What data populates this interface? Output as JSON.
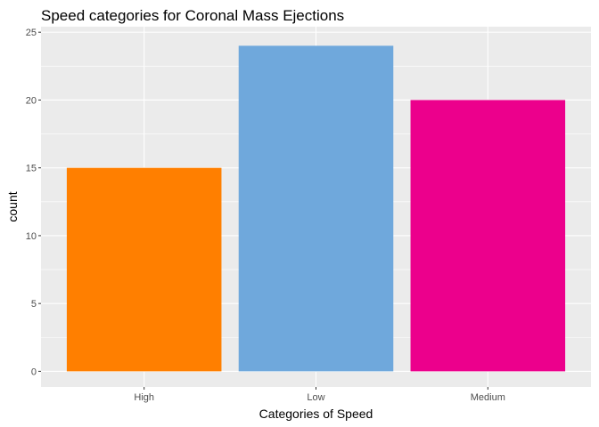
{
  "chart_data": {
    "type": "bar",
    "title": "Speed categories for Coronal Mass Ejections",
    "xlabel": "Categories of Speed",
    "ylabel": "count",
    "categories": [
      "High",
      "Low",
      "Medium"
    ],
    "values": [
      15,
      24,
      20
    ],
    "colors": [
      "#FF7F00",
      "#6FA8DC",
      "#EC008C"
    ],
    "ylim": [
      0,
      25
    ],
    "yticks": [
      0,
      5,
      10,
      15,
      20,
      25
    ],
    "grid": true,
    "legend": "none",
    "panel_background": "#EBEBEB",
    "grid_color": "#FFFFFF"
  }
}
